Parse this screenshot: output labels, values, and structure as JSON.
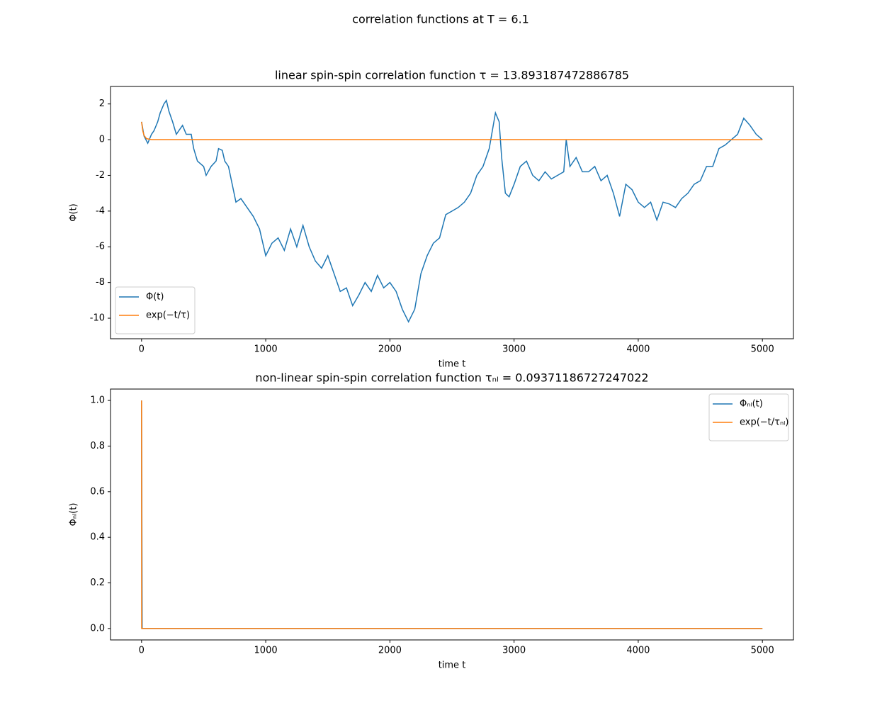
{
  "title": "correlation functions at T = 6.1",
  "chart_data": [
    {
      "type": "line",
      "title": "linear spin-spin correlation function τ = 13.893187472886785",
      "xlabel": "time t",
      "ylabel": "Φ(t)",
      "xlim": [
        -250,
        5250
      ],
      "ylim": [
        -11.15,
        2.98
      ],
      "xticks": [
        0,
        1000,
        2000,
        3000,
        4000,
        5000
      ],
      "yticks": [
        -10,
        -8,
        -6,
        -4,
        -2,
        0,
        2
      ],
      "legend": "lower left",
      "series": [
        {
          "name": "Φ(t)",
          "color": "#1f77b4",
          "x": [
            0,
            20,
            50,
            80,
            100,
            130,
            150,
            180,
            200,
            220,
            250,
            280,
            300,
            330,
            360,
            400,
            420,
            450,
            500,
            520,
            560,
            600,
            620,
            650,
            670,
            700,
            730,
            760,
            800,
            850,
            900,
            950,
            1000,
            1050,
            1100,
            1150,
            1200,
            1250,
            1300,
            1350,
            1400,
            1450,
            1500,
            1550,
            1600,
            1650,
            1700,
            1750,
            1800,
            1850,
            1900,
            1950,
            2000,
            2050,
            2100,
            2150,
            2200,
            2250,
            2300,
            2350,
            2400,
            2450,
            2500,
            2550,
            2600,
            2650,
            2700,
            2750,
            2800,
            2850,
            2880,
            2900,
            2930,
            2960,
            3000,
            3050,
            3100,
            3150,
            3200,
            3250,
            3300,
            3350,
            3400,
            3420,
            3450,
            3500,
            3550,
            3600,
            3650,
            3700,
            3750,
            3800,
            3850,
            3900,
            3950,
            4000,
            4050,
            4100,
            4150,
            4200,
            4250,
            4300,
            4350,
            4400,
            4450,
            4500,
            4550,
            4600,
            4650,
            4700,
            4750,
            4800,
            4850,
            4900,
            4950,
            5000
          ],
          "values": [
            1.0,
            0.2,
            -0.2,
            0.3,
            0.5,
            1.0,
            1.5,
            2.0,
            2.2,
            1.6,
            1.0,
            0.3,
            0.5,
            0.8,
            0.3,
            0.3,
            -0.5,
            -1.2,
            -1.5,
            -2.0,
            -1.5,
            -1.2,
            -0.5,
            -0.6,
            -1.2,
            -1.5,
            -2.5,
            -3.5,
            -3.3,
            -3.8,
            -4.3,
            -5.0,
            -6.5,
            -5.8,
            -5.5,
            -6.2,
            -5.0,
            -6.0,
            -4.8,
            -6.0,
            -6.8,
            -7.2,
            -6.5,
            -7.5,
            -8.5,
            -8.3,
            -9.3,
            -8.7,
            -8.0,
            -8.5,
            -7.6,
            -8.3,
            -8.0,
            -8.5,
            -9.5,
            -10.2,
            -9.5,
            -7.5,
            -6.5,
            -5.8,
            -5.5,
            -4.2,
            -4.0,
            -3.8,
            -3.5,
            -3.0,
            -2.0,
            -1.5,
            -0.5,
            1.5,
            1.0,
            -1.0,
            -3.0,
            -3.2,
            -2.5,
            -1.5,
            -1.2,
            -2.0,
            -2.3,
            -1.8,
            -2.2,
            -2.0,
            -1.8,
            0.0,
            -1.5,
            -1.0,
            -1.8,
            -1.8,
            -1.5,
            -2.3,
            -2.0,
            -3.0,
            -4.3,
            -2.5,
            -2.8,
            -3.5,
            -3.8,
            -3.5,
            -4.5,
            -3.5,
            -3.6,
            -3.8,
            -3.3,
            -3.0,
            -2.5,
            -2.3,
            -1.5,
            -1.5,
            -0.5,
            -0.3,
            0.0,
            0.3,
            1.2,
            0.8,
            0.3,
            0.0
          ]
        },
        {
          "name": "exp(−t/τ)",
          "color": "#ff7f0e",
          "x": [
            0,
            10,
            20,
            40,
            80,
            5000
          ],
          "values": [
            1.0,
            0.49,
            0.24,
            0.056,
            0.003,
            0
          ]
        }
      ]
    },
    {
      "type": "line",
      "title": "non-linear spin-spin correlation function τₙₗ = 0.09371186727247022",
      "xlabel": "time t",
      "ylabel": "Φₙₗ(t)",
      "xlim": [
        -250,
        5250
      ],
      "ylim": [
        -0.05,
        1.05
      ],
      "xticks": [
        0,
        1000,
        2000,
        3000,
        4000,
        5000
      ],
      "yticks": [
        {
          "value": 0,
          "label": "0.0"
        },
        0.2,
        0.4,
        0.6,
        0.8,
        {
          "value": 1,
          "label": "1.0"
        }
      ],
      "legend": "upper right",
      "series": [
        {
          "name": "Φₙₗ(t)",
          "color": "#1f77b4",
          "x": [
            0,
            5,
            5000
          ],
          "values": [
            1.0,
            0,
            0
          ]
        },
        {
          "name": "exp(−t/τₙₗ)",
          "color": "#ff7f0e",
          "x": [
            0,
            1,
            5000
          ],
          "values": [
            1.0,
            0,
            0
          ]
        }
      ]
    }
  ]
}
